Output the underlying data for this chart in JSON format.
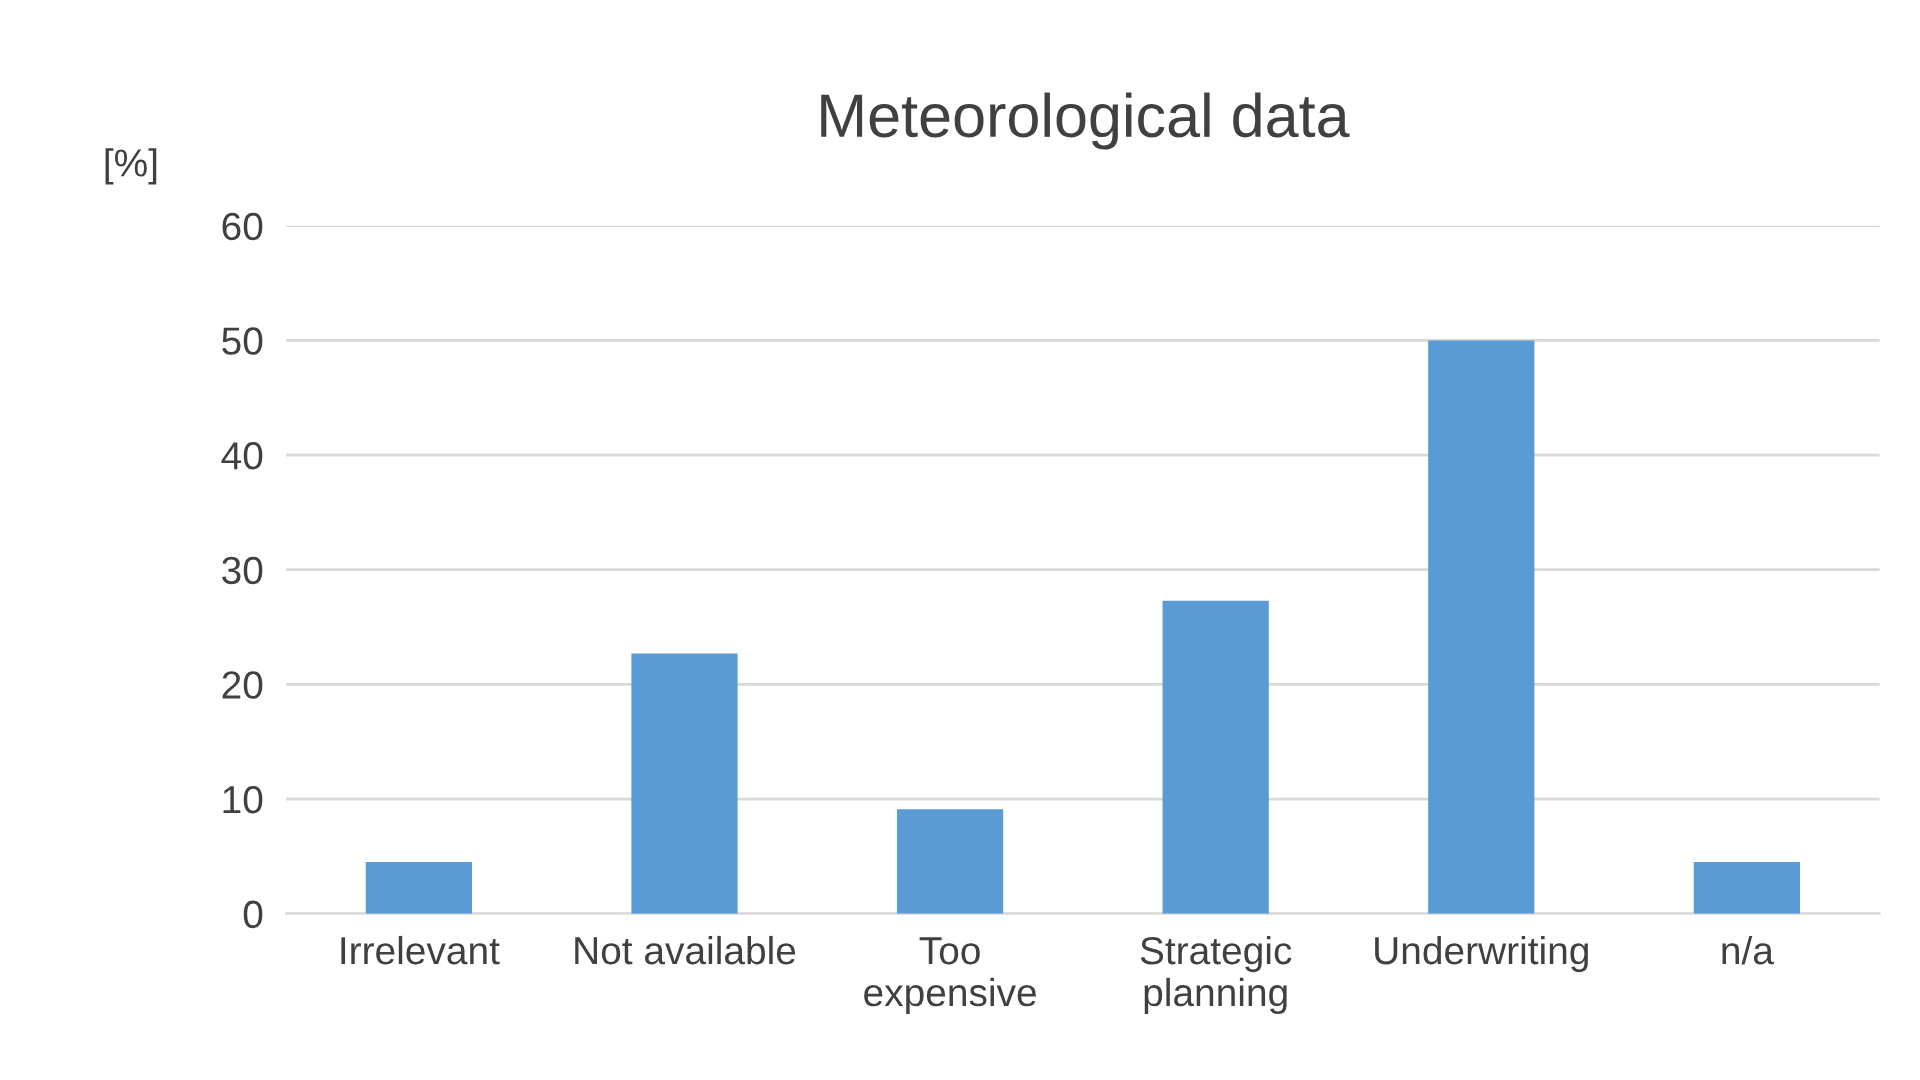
{
  "chart_data": {
    "type": "bar",
    "title": "Meteorological data",
    "ylabel": "[%]",
    "categories": [
      "Irrelevant",
      "Not available",
      "Too\nexpensive",
      "Strategic\nplanning",
      "Underwriting",
      "n/a"
    ],
    "values": [
      4.5,
      22.7,
      9.1,
      27.3,
      50,
      4.5
    ],
    "color": "#5b9bd5",
    "ylim": [
      0,
      60
    ],
    "yticks": [
      0,
      10,
      20,
      30,
      40,
      50,
      60
    ],
    "grid": "y",
    "legend": false
  }
}
